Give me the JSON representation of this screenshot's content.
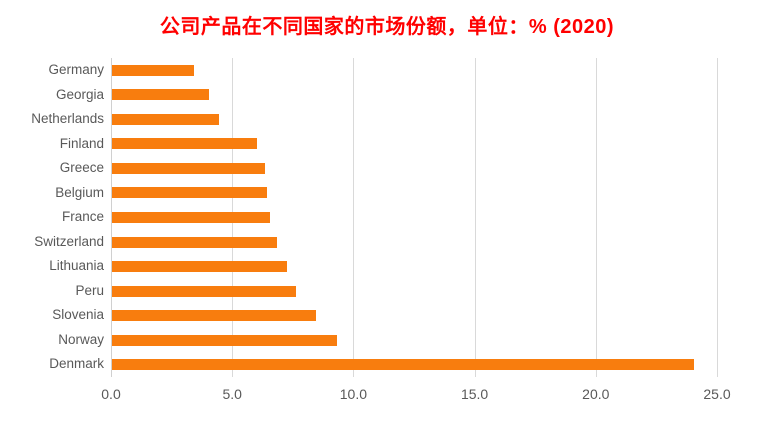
{
  "title": {
    "text": "公司产品在不同国家的市场份额，单位：% (2020)",
    "color": "#FF0000"
  },
  "chart_data": {
    "type": "bar",
    "orientation": "horizontal",
    "title": "公司产品在不同国家的市场份额，单位：% (2020)",
    "categories": [
      "Germany",
      "Georgia",
      "Netherlands",
      "Finland",
      "Greece",
      "Belgium",
      "France",
      "Switzerland",
      "Lithuania",
      "Peru",
      "Slovenia",
      "Norway",
      "Denmark"
    ],
    "values": [
      3.4,
      4.0,
      4.4,
      6.0,
      6.3,
      6.4,
      6.5,
      6.8,
      7.2,
      7.6,
      8.4,
      9.3,
      24.0
    ],
    "xlabel": "",
    "ylabel": "",
    "xlim": [
      0,
      25
    ],
    "xticks": [
      0,
      5,
      10,
      15,
      20,
      25
    ],
    "xtick_labels": [
      "0.0",
      "5.0",
      "10.0",
      "15.0",
      "20.0",
      "25.0"
    ],
    "bar_color": "#F87D0E",
    "gridline_color": "#D9D9D9",
    "axis_line_color": "#D0D0D0",
    "label_color": "#595959",
    "grid": "vertical-only",
    "legend": "none"
  }
}
